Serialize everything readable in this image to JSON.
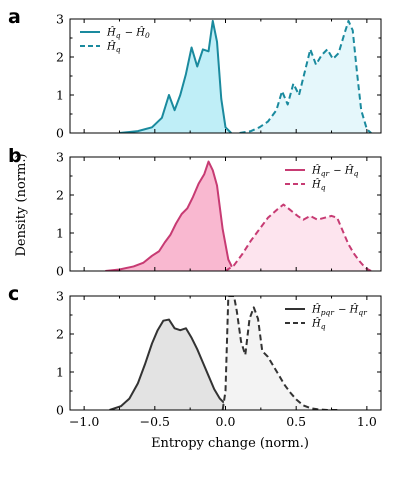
{
  "xlabel": "Entropy change (norm.)",
  "ylabel": "Density (norm.)",
  "chart_data": [
    {
      "type": "area",
      "panel": "a",
      "color": "#1a8a9e",
      "fill_solid": "#bfeef7",
      "fill_dashed": "#e5f7fb",
      "xlim": [
        -1.1,
        1.1
      ],
      "ylim": [
        0,
        3
      ],
      "legend_position": "top-left",
      "series": [
        {
          "name": "Ĥ_q − Ĥ_0",
          "style": "solid",
          "x": [
            -0.75,
            -0.62,
            -0.52,
            -0.45,
            -0.4,
            -0.36,
            -0.32,
            -0.28,
            -0.24,
            -0.2,
            -0.16,
            -0.12,
            -0.09,
            -0.06,
            -0.03,
            0.0,
            0.04
          ],
          "y": [
            0.0,
            0.05,
            0.15,
            0.4,
            1.0,
            0.6,
            1.0,
            1.55,
            2.25,
            1.75,
            2.2,
            2.15,
            2.95,
            2.4,
            0.9,
            0.15,
            0.0
          ]
        },
        {
          "name": "Ĥ_q",
          "style": "dashed",
          "x": [
            0.1,
            0.18,
            0.24,
            0.3,
            0.36,
            0.4,
            0.44,
            0.48,
            0.52,
            0.56,
            0.6,
            0.64,
            0.68,
            0.72,
            0.76,
            0.8,
            0.84,
            0.87,
            0.9,
            0.93,
            0.96,
            1.0,
            1.03
          ],
          "y": [
            0.0,
            0.05,
            0.15,
            0.3,
            0.6,
            1.1,
            0.75,
            1.3,
            1.0,
            1.6,
            2.2,
            1.8,
            2.05,
            2.2,
            1.95,
            2.1,
            2.6,
            2.95,
            2.7,
            1.6,
            0.6,
            0.1,
            0.0
          ]
        }
      ]
    },
    {
      "type": "area",
      "panel": "b",
      "color": "#c73b73",
      "fill_solid": "#f9b8d0",
      "fill_dashed": "#fde4ee",
      "xlim": [
        -1.1,
        1.1
      ],
      "ylim": [
        0,
        3
      ],
      "legend_position": "top-right",
      "series": [
        {
          "name": "Ĥ_qr − Ĥ_q",
          "style": "solid",
          "x": [
            -0.85,
            -0.75,
            -0.65,
            -0.58,
            -0.52,
            -0.47,
            -0.43,
            -0.39,
            -0.35,
            -0.31,
            -0.27,
            -0.23,
            -0.19,
            -0.15,
            -0.12,
            -0.09,
            -0.06,
            -0.02,
            0.02,
            0.06
          ],
          "y": [
            0.0,
            0.04,
            0.12,
            0.22,
            0.4,
            0.52,
            0.75,
            0.95,
            1.25,
            1.5,
            1.65,
            1.95,
            2.3,
            2.55,
            2.88,
            2.65,
            2.25,
            1.1,
            0.3,
            0.0
          ]
        },
        {
          "name": "Ĥ_q",
          "style": "dashed",
          "x": [
            0.0,
            0.06,
            0.12,
            0.18,
            0.24,
            0.3,
            0.36,
            0.41,
            0.46,
            0.51,
            0.55,
            0.6,
            0.65,
            0.7,
            0.75,
            0.79,
            0.83,
            0.87,
            0.91,
            0.95,
            0.99,
            1.03
          ],
          "y": [
            0.0,
            0.15,
            0.45,
            0.8,
            1.1,
            1.4,
            1.6,
            1.75,
            1.6,
            1.45,
            1.35,
            1.45,
            1.35,
            1.4,
            1.45,
            1.4,
            1.05,
            0.7,
            0.45,
            0.25,
            0.08,
            0.0
          ]
        }
      ]
    },
    {
      "type": "area",
      "panel": "c",
      "color": "#333333",
      "fill_solid": "#e3e3e3",
      "fill_dashed": "#f3f3f3",
      "xlim": [
        -1.1,
        1.1
      ],
      "ylim": [
        0,
        3
      ],
      "xticks": [
        -1.0,
        -0.5,
        0.0,
        0.5,
        1.0
      ],
      "xticklabels": [
        "−1.0",
        "−0.5",
        "0.0",
        "0.5",
        "1.0"
      ],
      "legend_position": "top-right",
      "series": [
        {
          "name": "Ĥ_pqr − Ĥ_qr",
          "style": "solid",
          "x": [
            -0.82,
            -0.74,
            -0.68,
            -0.62,
            -0.57,
            -0.52,
            -0.48,
            -0.44,
            -0.4,
            -0.36,
            -0.32,
            -0.28,
            -0.24,
            -0.2,
            -0.16,
            -0.12,
            -0.08,
            -0.04,
            0.0,
            0.05,
            0.1
          ],
          "y": [
            0.0,
            0.1,
            0.3,
            0.7,
            1.2,
            1.75,
            2.1,
            2.35,
            2.38,
            2.15,
            2.1,
            2.15,
            1.9,
            1.6,
            1.25,
            0.9,
            0.55,
            0.3,
            0.15,
            0.05,
            0.0
          ]
        },
        {
          "name": "Ĥ_q",
          "style": "dashed",
          "x": [
            -0.02,
            0.0,
            0.02,
            0.04,
            0.06,
            0.08,
            0.11,
            0.14,
            0.17,
            0.2,
            0.23,
            0.26,
            0.3,
            0.34,
            0.38,
            0.42,
            0.46,
            0.5,
            0.55,
            0.6,
            0.65,
            0.72,
            0.8
          ],
          "y": [
            0.0,
            0.5,
            3.0,
            3.0,
            3.0,
            2.6,
            1.8,
            1.45,
            2.4,
            2.7,
            2.4,
            1.55,
            1.4,
            1.15,
            0.9,
            0.65,
            0.45,
            0.28,
            0.12,
            0.05,
            0.02,
            0.0,
            0.0
          ]
        }
      ]
    }
  ]
}
